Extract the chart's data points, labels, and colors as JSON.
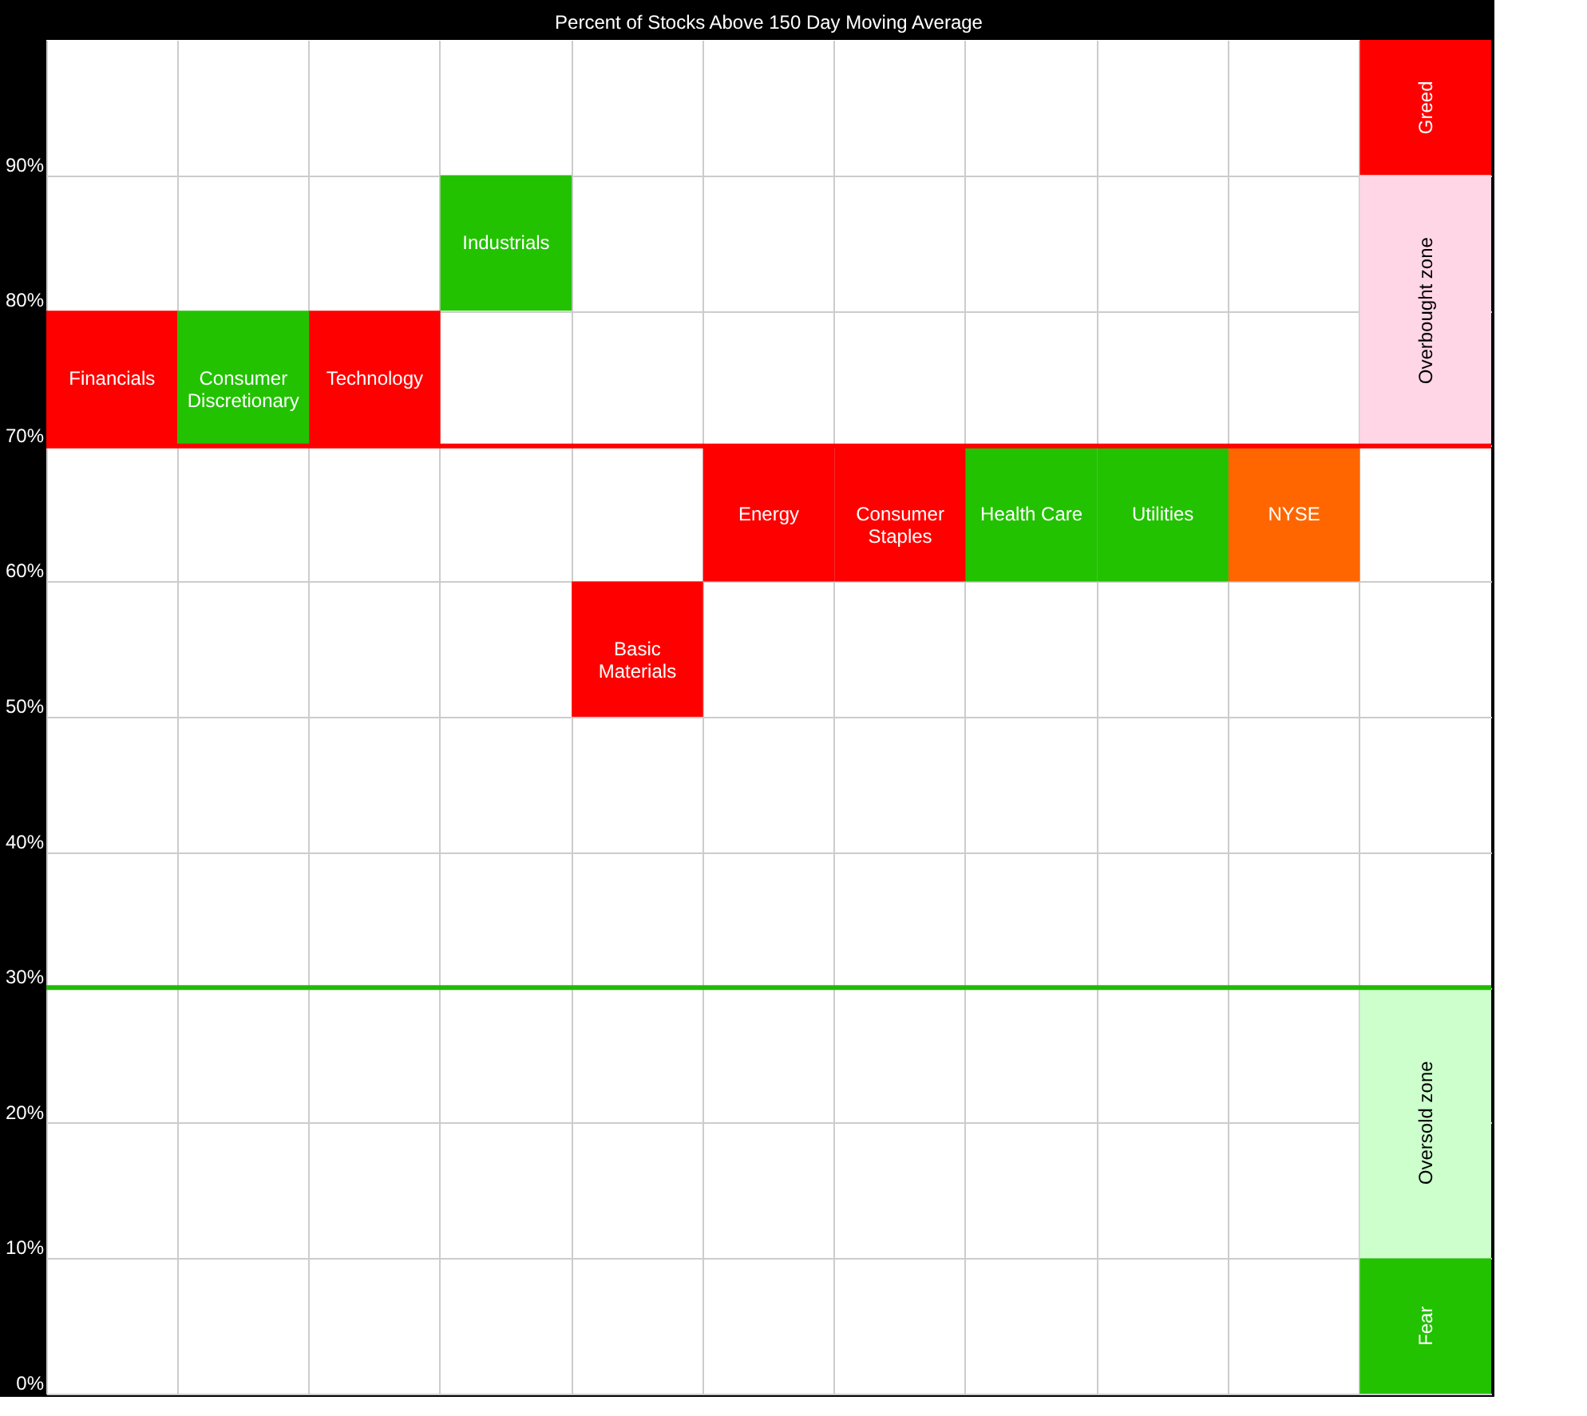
{
  "chart_data": {
    "type": "bar",
    "title": "Percent of Stocks Above 150 Day Moving Average",
    "categories": [
      null,
      null,
      null,
      null,
      null,
      null,
      null,
      null,
      null,
      null,
      null
    ],
    "series": [
      {
        "values": [
          10,
          10,
          10,
          10,
          10,
          10,
          10,
          10,
          10,
          10,
          null
        ],
        "base": [
          70,
          70,
          70,
          80,
          50,
          60,
          60,
          60,
          60,
          60,
          null
        ],
        "colors": [
          "#ff0000",
          "#22c200",
          "#ff0000",
          "#22c200",
          "#ff0000",
          "#ff0000",
          "#ff0000",
          "#22c200",
          "#22c200",
          "#ff6600",
          null
        ],
        "value_labels": [
          "Financials",
          "Consumer Discretionary",
          "Technology",
          "Industrials",
          "Basic Materials",
          "Energy",
          "Consumer Staples",
          "Health Care",
          "Utilities",
          "NYSE",
          null
        ]
      },
      {
        "values": [
          null,
          null,
          null,
          null,
          null,
          null,
          null,
          null,
          null,
          null,
          10
        ],
        "base": [
          null,
          null,
          null,
          null,
          null,
          null,
          null,
          null,
          null,
          null,
          90
        ],
        "color": "#ff0000",
        "value_labels": [
          null,
          null,
          null,
          null,
          null,
          null,
          null,
          null,
          null,
          null,
          "Greed"
        ]
      },
      {
        "values": [
          null,
          null,
          null,
          null,
          null,
          null,
          null,
          null,
          null,
          null,
          20
        ],
        "base": [
          null,
          null,
          null,
          null,
          null,
          null,
          null,
          null,
          null,
          null,
          70
        ],
        "color": "#ffd6e6",
        "value_labels": [
          null,
          null,
          null,
          null,
          null,
          null,
          null,
          null,
          null,
          null,
          "Overbought zone"
        ]
      },
      {
        "values": [
          null,
          null,
          null,
          null,
          null,
          null,
          null,
          null,
          null,
          null,
          20
        ],
        "base": [
          null,
          null,
          null,
          null,
          null,
          null,
          null,
          null,
          null,
          null,
          10
        ],
        "color": "#ccffcc",
        "value_labels": [
          null,
          null,
          null,
          null,
          null,
          null,
          null,
          null,
          null,
          null,
          "Oversold zone"
        ]
      },
      {
        "values": [
          null,
          null,
          null,
          null,
          null,
          null,
          null,
          null,
          null,
          null,
          10
        ],
        "base": [
          null,
          null,
          null,
          null,
          null,
          null,
          null,
          null,
          null,
          null,
          0
        ],
        "color": "#22c200",
        "value_labels": [
          null,
          null,
          null,
          null,
          null,
          null,
          null,
          null,
          null,
          null,
          "Fear"
        ]
      }
    ],
    "ylim": [
      0,
      100
    ],
    "yticks": [
      {
        "value": 0,
        "label": "0%"
      },
      {
        "value": 10,
        "label": "10%"
      },
      {
        "value": 20,
        "label": "20%"
      },
      {
        "value": 30,
        "label": "30%"
      },
      {
        "value": 40,
        "label": "40%"
      },
      {
        "value": 50,
        "label": "50%"
      },
      {
        "value": 60,
        "label": "60%"
      },
      {
        "value": 70,
        "label": "70%"
      },
      {
        "value": 80,
        "label": "80%"
      },
      {
        "value": 90,
        "label": "90%"
      }
    ],
    "grid": true,
    "tick_labels": "y",
    "ref_lines": [
      {
        "axis": "y",
        "value": 70,
        "color": "#ff0000"
      },
      {
        "axis": "y",
        "value": 30,
        "color": "#22bb00"
      }
    ]
  }
}
